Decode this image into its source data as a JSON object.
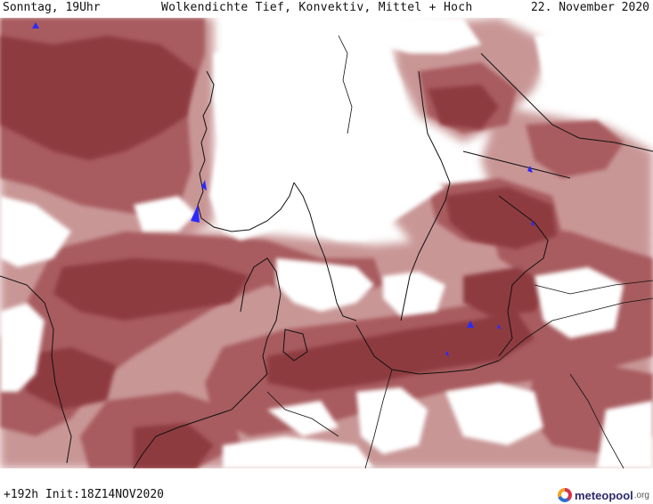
{
  "header": {
    "left": "Sonntag, 19Uhr",
    "center": "Wolkendichte  Tief, Konvektiv, Mittel + Hoch",
    "right": "22. November 2020"
  },
  "footer": {
    "run_info": "+192h  Init:18Z14NOV2020"
  },
  "logo": {
    "name": "meteopool",
    "tld": ".org"
  },
  "colors": {
    "cloud_dense": "#8e3a3f",
    "cloud_medium": "#a85c5f",
    "cloud_light": "#c99696",
    "clear": "#ffffff",
    "coast": "#111111",
    "precip": "#2a2aff"
  }
}
